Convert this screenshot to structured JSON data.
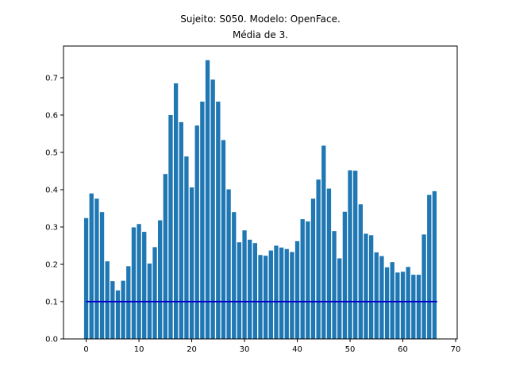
{
  "chart_data": {
    "type": "bar",
    "title": "Sujeito: S050. Modelo: OpenFace.",
    "subtitle": "Média de 3.",
    "xlabel": "",
    "ylabel": "",
    "x": [
      0,
      1,
      2,
      3,
      4,
      5,
      6,
      7,
      8,
      9,
      10,
      11,
      12,
      13,
      14,
      15,
      16,
      17,
      18,
      19,
      20,
      21,
      22,
      23,
      24,
      25,
      26,
      27,
      28,
      29,
      30,
      31,
      32,
      33,
      34,
      35,
      36,
      37,
      38,
      39,
      40,
      41,
      42,
      43,
      44,
      45,
      46,
      47,
      48,
      49,
      50,
      51,
      52,
      53,
      54,
      55,
      56,
      57,
      58,
      59,
      60,
      61,
      62,
      63,
      64,
      65,
      66
    ],
    "values": [
      0.324,
      0.39,
      0.376,
      0.34,
      0.208,
      0.155,
      0.13,
      0.156,
      0.195,
      0.299,
      0.308,
      0.287,
      0.202,
      0.246,
      0.318,
      0.442,
      0.6,
      0.685,
      0.581,
      0.489,
      0.406,
      0.572,
      0.636,
      0.747,
      0.695,
      0.636,
      0.533,
      0.401,
      0.34,
      0.259,
      0.291,
      0.266,
      0.257,
      0.225,
      0.223,
      0.237,
      0.25,
      0.245,
      0.241,
      0.233,
      0.262,
      0.321,
      0.315,
      0.376,
      0.427,
      0.518,
      0.403,
      0.289,
      0.216,
      0.341,
      0.452,
      0.451,
      0.361,
      0.282,
      0.278,
      0.232,
      0.222,
      0.192,
      0.206,
      0.178,
      0.18,
      0.193,
      0.172,
      0.172,
      0.28,
      0.386,
      0.396
    ],
    "bar_color": "#1f77b4",
    "reference_line": {
      "y": 0.1,
      "x_range": [
        0,
        66.5
      ],
      "color": "#0000cd"
    },
    "xlim": [
      -4.3,
      70.3
    ],
    "ylim": [
      0,
      0.785
    ],
    "xticks": [
      0,
      10,
      20,
      30,
      40,
      50,
      60,
      70
    ],
    "xtick_labels": [
      "0",
      "10",
      "20",
      "30",
      "40",
      "50",
      "60",
      "70"
    ],
    "yticks": [
      0.0,
      0.1,
      0.2,
      0.3,
      0.4,
      0.5,
      0.6,
      0.7
    ],
    "ytick_labels": [
      "0.0",
      "0.1",
      "0.2",
      "0.3",
      "0.4",
      "0.5",
      "0.6",
      "0.7"
    ],
    "grid": false,
    "legend": "none"
  }
}
